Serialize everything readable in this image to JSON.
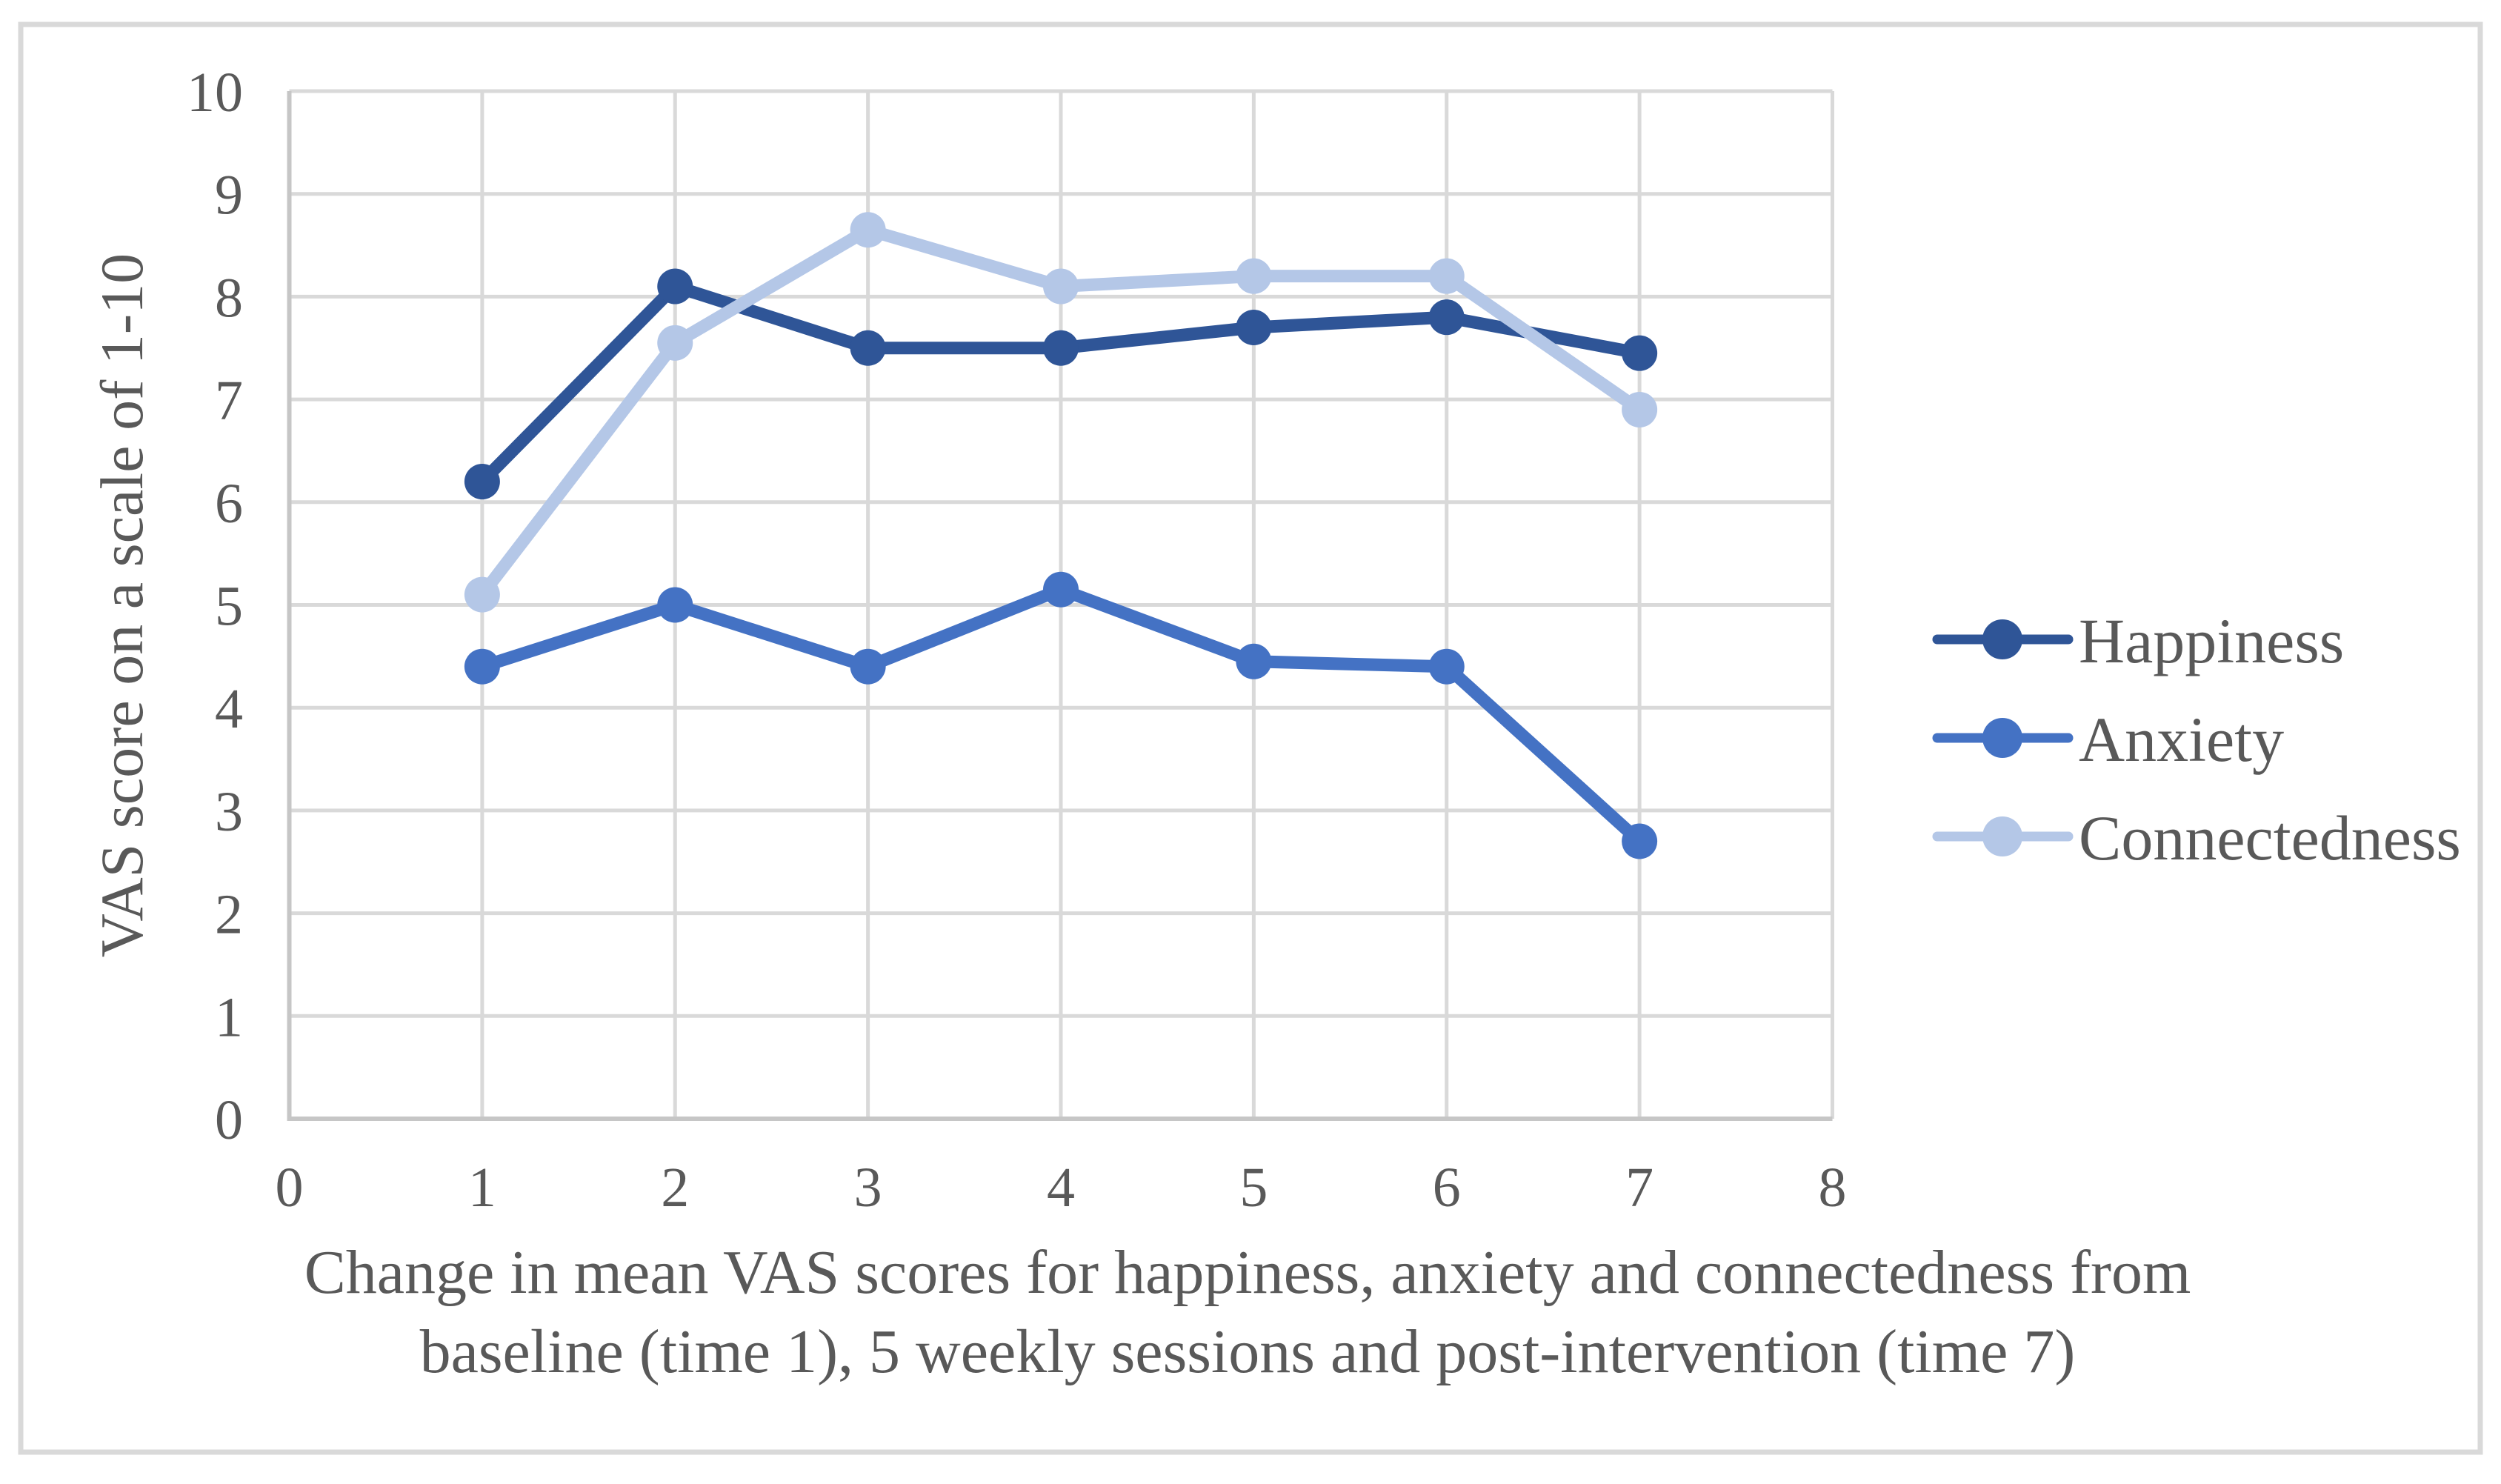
{
  "figure": {
    "background_color": "#FFFFFF",
    "border_color": "#D9D9D9"
  },
  "caption": {
    "line1": "Change in mean VAS scores for happiness, anxiety and connectedness from",
    "line2": "baseline (time 1), 5 weekly sessions and post-intervention (time 7)"
  },
  "chart_data": {
    "type": "line",
    "x": [
      1,
      2,
      3,
      4,
      5,
      6,
      7
    ],
    "series": [
      {
        "name": "Happiness",
        "color": "#2F5597",
        "values": [
          6.2,
          8.1,
          7.5,
          7.5,
          7.7,
          7.8,
          7.45
        ]
      },
      {
        "name": "Anxiety",
        "color": "#4472C4",
        "values": [
          4.4,
          5.0,
          4.4,
          5.15,
          4.45,
          4.4,
          2.7
        ]
      },
      {
        "name": "Connectedness",
        "color": "#B4C7E7",
        "values": [
          5.1,
          7.55,
          8.65,
          8.1,
          8.2,
          8.2,
          6.9
        ]
      }
    ],
    "title": "",
    "xlabel": "",
    "ylabel": "VAS score on a scale of 1-10",
    "xlim": [
      0,
      8
    ],
    "ylim": [
      0,
      10
    ],
    "x_ticks": [
      0,
      1,
      2,
      3,
      4,
      5,
      6,
      7,
      8
    ],
    "y_ticks": [
      0,
      1,
      2,
      3,
      4,
      5,
      6,
      7,
      8,
      9,
      10
    ],
    "grid": true,
    "legend_position": "right",
    "legend_entries": [
      "Happiness",
      "Anxiety",
      "Connectedness"
    ],
    "gridline_color": "#D9D9D9",
    "axis_line_color": "#C6C6C6",
    "tick_label_color": "#595959"
  }
}
